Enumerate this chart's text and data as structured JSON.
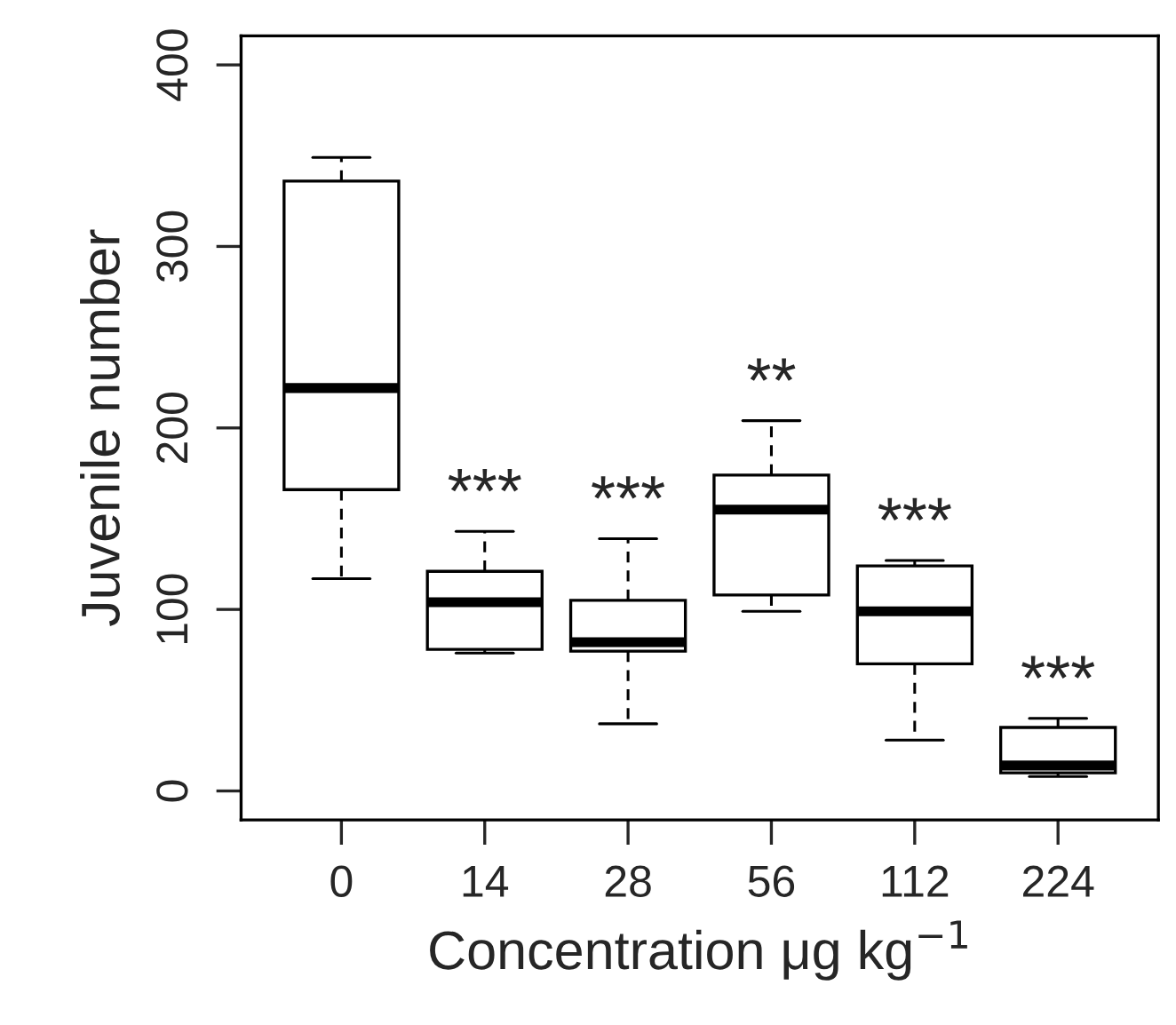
{
  "chart_data": {
    "type": "box",
    "xlabel": "Concentration μg kg$^{−1}$",
    "ylabel": "Juvenile number",
    "categories": [
      "0",
      "14",
      "28",
      "56",
      "112",
      "224"
    ],
    "boxes": [
      {
        "low": 117,
        "q1": 166,
        "median": 222,
        "q3": 336,
        "high": 349
      },
      {
        "low": 76,
        "q1": 78,
        "median": 104,
        "q3": 121,
        "high": 143
      },
      {
        "low": 37,
        "q1": 77,
        "median": 82,
        "q3": 105,
        "high": 139
      },
      {
        "low": 99,
        "q1": 108,
        "median": 155,
        "q3": 174,
        "high": 204
      },
      {
        "low": 28,
        "q1": 70,
        "median": 99,
        "q3": 124,
        "high": 127
      },
      {
        "low": 8,
        "q1": 10,
        "median": 14,
        "q3": 35,
        "high": 40
      }
    ],
    "ylim": [
      -16,
      416
    ],
    "yticks": [
      0,
      100,
      200,
      300,
      400
    ],
    "grid": false,
    "annotations": [
      {
        "text": "***",
        "x": "14",
        "y": 143
      },
      {
        "text": "***",
        "x": "28",
        "y": 139
      },
      {
        "text": "**",
        "x": "56",
        "y": 204
      },
      {
        "text": "***",
        "x": "112",
        "y": 127
      },
      {
        "text": "***",
        "x": "224",
        "y": 40
      }
    ]
  }
}
